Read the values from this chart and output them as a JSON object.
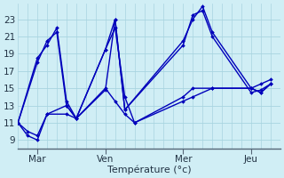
{
  "background_color": "#d0eef5",
  "grid_color": "#a8d4e0",
  "line_color": "#0000bb",
  "xlabel": "Température (°c)",
  "yticks": [
    9,
    11,
    13,
    15,
    17,
    19,
    21,
    23
  ],
  "ylim": [
    8.0,
    24.8
  ],
  "day_labels": [
    "Mar",
    "Ven",
    "Mer",
    "Jeu"
  ],
  "day_positions": [
    2,
    9,
    17,
    24
  ],
  "xlim": [
    0,
    27
  ],
  "lines_x": [
    [
      0,
      1,
      2,
      3,
      5,
      6,
      9,
      10,
      11,
      12,
      17,
      18,
      20,
      24,
      25,
      26
    ],
    [
      0,
      1,
      2,
      3,
      5,
      6,
      9,
      10,
      11,
      12,
      17,
      18,
      20,
      24,
      25,
      26
    ],
    [
      0,
      2,
      3,
      4,
      5,
      6,
      9,
      10,
      11,
      17,
      18,
      19,
      20,
      24,
      25,
      26
    ],
    [
      0,
      2,
      3,
      4,
      5,
      6,
      9,
      10,
      11,
      17,
      18,
      19,
      20,
      24,
      25,
      26
    ]
  ],
  "lines_y": [
    [
      11,
      10,
      9.5,
      12,
      12,
      11.5,
      15,
      13.5,
      12,
      11,
      13.5,
      14,
      15,
      15,
      15.5,
      16
    ],
    [
      11,
      9.5,
      9,
      12,
      13,
      11.5,
      19.5,
      22,
      14,
      11,
      14,
      15,
      15,
      15,
      14.5,
      15.5
    ],
    [
      11,
      18,
      20.5,
      21.5,
      13,
      11.5,
      19.5,
      23,
      12.5,
      20,
      23.5,
      24,
      21,
      14.5,
      14.8,
      15.5
    ],
    [
      11,
      18.5,
      20,
      22,
      13.5,
      11.5,
      14.8,
      23,
      12.5,
      20.5,
      23,
      24.5,
      21.5,
      15,
      14.5,
      15.5
    ]
  ]
}
